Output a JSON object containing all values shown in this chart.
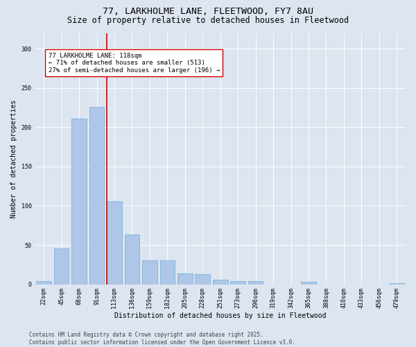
{
  "title_line1": "77, LARKHOLME LANE, FLEETWOOD, FY7 8AU",
  "title_line2": "Size of property relative to detached houses in Fleetwood",
  "xlabel": "Distribution of detached houses by size in Fleetwood",
  "ylabel": "Number of detached properties",
  "categories": [
    "22sqm",
    "45sqm",
    "68sqm",
    "91sqm",
    "113sqm",
    "136sqm",
    "159sqm",
    "182sqm",
    "205sqm",
    "228sqm",
    "251sqm",
    "273sqm",
    "296sqm",
    "319sqm",
    "342sqm",
    "365sqm",
    "388sqm",
    "410sqm",
    "433sqm",
    "456sqm",
    "479sqm"
  ],
  "values": [
    4,
    46,
    211,
    226,
    106,
    63,
    31,
    31,
    14,
    13,
    6,
    4,
    4,
    0,
    0,
    3,
    0,
    0,
    0,
    0,
    1
  ],
  "bar_color": "#aec6e8",
  "bar_edge_color": "#6aaed6",
  "vline_color": "#cc0000",
  "vline_x": 3.575,
  "annotation_box_text": "77 LARKHOLME LANE: 118sqm\n← 71% of detached houses are smaller (513)\n27% of semi-detached houses are larger (196) →",
  "annotation_box_color": "#cc0000",
  "ylim": [
    0,
    320
  ],
  "yticks": [
    0,
    50,
    100,
    150,
    200,
    250,
    300
  ],
  "background_color": "#dde5f0",
  "plot_bg_color": "#dde5f0",
  "footer_text": "Contains HM Land Registry data © Crown copyright and database right 2025.\nContains public sector information licensed under the Open Government Licence v3.0.",
  "title_fontsize": 9.5,
  "subtitle_fontsize": 8.5,
  "axis_label_fontsize": 7,
  "tick_fontsize": 6,
  "annotation_fontsize": 6.5,
  "footer_fontsize": 5.5
}
